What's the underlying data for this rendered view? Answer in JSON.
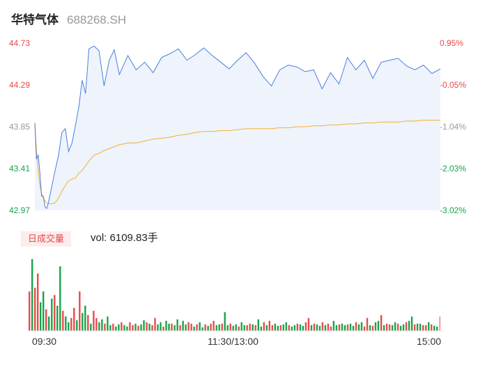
{
  "header": {
    "name": "华特气体",
    "code": "688268.SH"
  },
  "colors": {
    "up": "#e84a4a",
    "down": "#17a34a",
    "flat": "#999999",
    "price_line": "#4a7fdc",
    "avg_line": "#f2b132",
    "price_fill": "#eef3fc"
  },
  "chart_data": [
    {
      "type": "line",
      "title": "",
      "xlabel": "",
      "ylabel": "",
      "x_ticks": [
        "09:30",
        "11:30/13:00",
        "15:00"
      ],
      "y_ticks_left": [
        "44.73",
        "44.29",
        "43.85",
        "43.41",
        "42.97"
      ],
      "y_ticks_right": [
        "0.95%",
        "-0.05%",
        "-1.04%",
        "-2.03%",
        "-3.02%"
      ],
      "ylim": [
        42.97,
        44.73
      ],
      "x": [
        0,
        1,
        2,
        3,
        4,
        5,
        6,
        7,
        8,
        10,
        12,
        14,
        16,
        18,
        20,
        22,
        24,
        26,
        28,
        30,
        32,
        35,
        38,
        41,
        44,
        47,
        50,
        55,
        60,
        65,
        70,
        75,
        80,
        85,
        90,
        95,
        100,
        105,
        110,
        115,
        120,
        125,
        130,
        135,
        140,
        145,
        150,
        155,
        160,
        165,
        170,
        175,
        180,
        185,
        190,
        195,
        200,
        205,
        210,
        215,
        220,
        225,
        230,
        235,
        240
      ],
      "series": [
        {
          "values": [
            43.89,
            43.51,
            43.55,
            43.36,
            43.12,
            43.12,
            43.01,
            42.99,
            43.05,
            43.22,
            43.39,
            43.55,
            43.79,
            43.83,
            43.59,
            43.68,
            43.86,
            44.06,
            44.34,
            44.2,
            44.67,
            44.7,
            44.65,
            44.28,
            44.55,
            44.66,
            44.4,
            44.6,
            44.45,
            44.53,
            44.42,
            44.58,
            44.62,
            44.67,
            44.55,
            44.61,
            44.68,
            44.6,
            44.53,
            44.46,
            44.55,
            44.63,
            44.52,
            44.38,
            44.28,
            44.45,
            44.5,
            44.48,
            44.43,
            44.45,
            44.25,
            44.42,
            44.3,
            44.58,
            44.45,
            44.55,
            44.36,
            44.53,
            44.55,
            44.57,
            44.49,
            44.45,
            44.5,
            44.41,
            44.46
          ]
        },
        {
          "values": [
            43.89,
            43.6,
            43.38,
            43.23,
            43.15,
            43.1,
            43.07,
            43.05,
            43.04,
            43.04,
            43.05,
            43.1,
            43.17,
            43.23,
            43.28,
            43.3,
            43.31,
            43.36,
            43.39,
            43.44,
            43.49,
            43.55,
            43.57,
            43.6,
            43.62,
            43.64,
            43.66,
            43.68,
            43.68,
            43.7,
            43.72,
            43.73,
            43.74,
            43.76,
            43.77,
            43.79,
            43.8,
            43.8,
            43.81,
            43.81,
            43.82,
            43.83,
            43.83,
            43.83,
            43.83,
            43.84,
            43.84,
            43.85,
            43.85,
            43.86,
            43.86,
            43.87,
            43.87,
            43.88,
            43.88,
            43.89,
            43.89,
            43.9,
            43.9,
            43.9,
            43.91,
            43.91,
            43.92,
            43.92,
            43.92
          ]
        }
      ]
    },
    {
      "type": "bar",
      "title": "",
      "label": "日成交量",
      "readout": "vol: 6109.83手",
      "x_ticks": [
        "09:30",
        "11:30/13:00",
        "15:00"
      ],
      "series": [
        {
          "values": [
            55,
            100,
            60,
            80,
            40,
            55,
            30,
            20,
            45,
            50,
            35,
            90,
            28,
            20,
            12,
            18,
            32,
            15,
            55,
            25,
            35,
            22,
            10,
            28,
            18,
            12,
            16,
            10,
            20,
            8,
            10,
            6,
            9,
            12,
            8,
            6,
            12,
            8,
            10,
            7,
            9,
            15,
            12,
            10,
            8,
            18,
            9,
            12,
            6,
            14,
            10,
            10,
            8,
            16,
            8,
            14,
            9,
            12,
            10,
            6,
            9,
            12,
            5,
            9,
            7,
            10,
            14,
            8,
            9,
            10,
            26,
            8,
            10,
            7,
            9,
            6,
            12,
            8,
            8,
            10,
            9,
            8,
            16,
            6,
            12,
            8,
            14,
            8,
            10,
            7,
            8,
            9,
            12,
            8,
            6,
            8,
            10,
            9,
            7,
            12,
            18,
            8,
            10,
            9,
            7,
            12,
            8,
            10,
            6,
            14,
            8,
            9,
            10,
            8,
            9,
            10,
            7,
            12,
            9,
            12,
            6,
            18,
            8,
            7,
            12,
            14,
            22,
            8,
            10,
            9,
            8,
            12,
            10,
            7,
            9,
            12,
            14,
            20,
            9,
            10,
            10,
            8,
            8,
            12,
            9,
            7,
            6,
            20
          ]
        }
      ]
    }
  ]
}
